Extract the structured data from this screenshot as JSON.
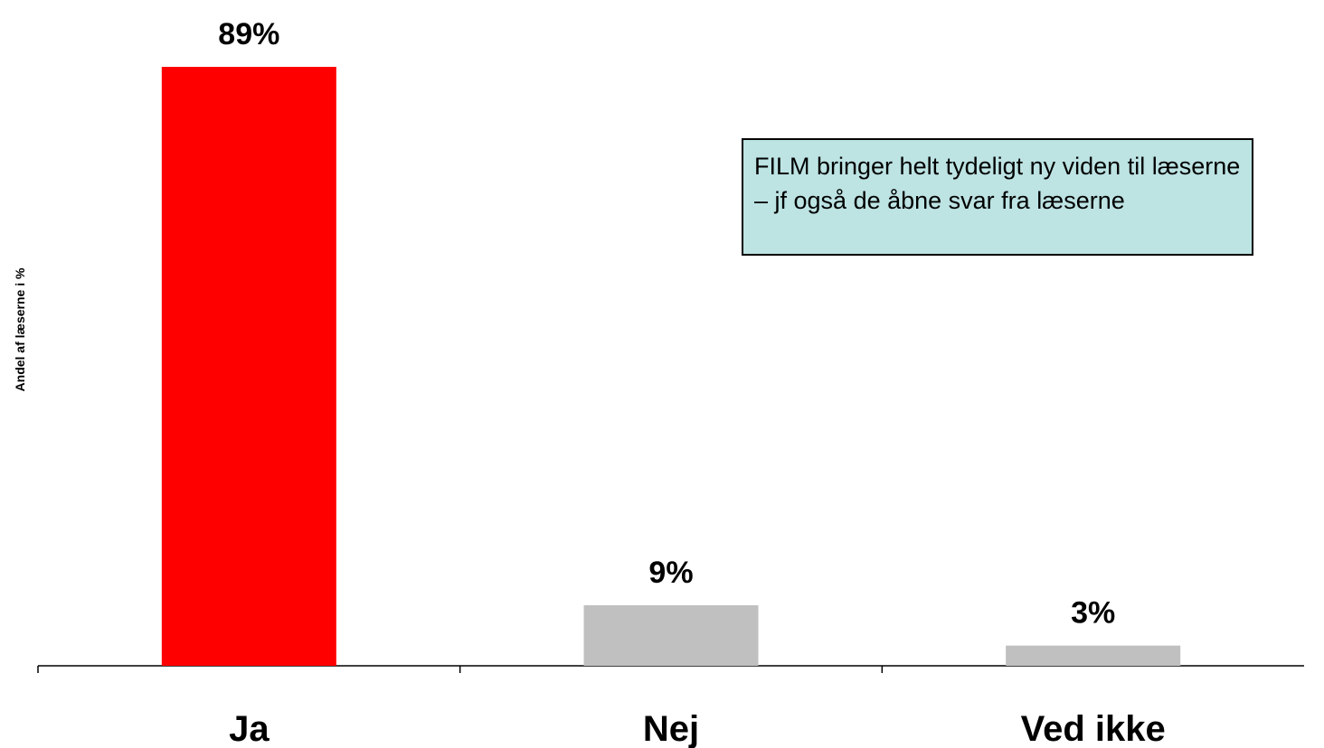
{
  "chart_data": {
    "type": "bar",
    "categories": [
      "Ja",
      "Nej",
      "Ved ikke"
    ],
    "values": [
      89,
      9,
      3
    ],
    "value_labels": [
      "89%",
      "9%",
      "3%"
    ],
    "colors": [
      "#ff0000",
      "#c0c0c0",
      "#c0c0c0"
    ],
    "ylabel": "Andel af læserne i %",
    "ylim": [
      0,
      100
    ],
    "grid": false
  },
  "annotation": {
    "text": "FILM bringer helt tydeligt ny viden til læserne – jf også de åbne svar fra læserne",
    "background": "#bde3e3"
  }
}
